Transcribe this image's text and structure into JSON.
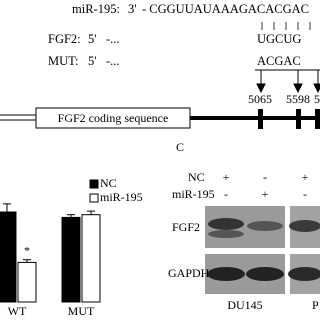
{
  "sequence": {
    "mir": {
      "label": "miR-195:",
      "end": "3'",
      "seq": "- CGGUUAUAAAGACACGAC"
    },
    "wt": {
      "label": "FGF2:",
      "end": "5'",
      "dots": "-...",
      "seq": "UGCUG"
    },
    "mut": {
      "label": "MUT:",
      "end": "5'",
      "dots": "-...",
      "seq": "ACGAC"
    },
    "positions": [
      "5065",
      "5598",
      "5"
    ]
  },
  "gene_map": {
    "box": "FGF2 coding sequence"
  },
  "panel_label": "C",
  "blot": {
    "rows": [
      "NC",
      "miR-195"
    ],
    "signs": [
      [
        "+",
        "-",
        "+"
      ],
      [
        "-",
        "+",
        "-"
      ]
    ],
    "bands": [
      "FGF2",
      "GAPDH"
    ],
    "cell_lines": [
      "DU145",
      "P"
    ]
  },
  "chart_data": {
    "type": "bar",
    "categories": [
      "WT",
      "MUT"
    ],
    "series": [
      {
        "name": "NC",
        "color": "#000000",
        "values": [
          1.0,
          0.94
        ],
        "errors": [
          0.09,
          0.03
        ]
      },
      {
        "name": "miR-195",
        "color": "#ffffff",
        "values": [
          0.44,
          0.97
        ],
        "errors": [
          0.03,
          0.04
        ]
      }
    ],
    "ylim": [
      0,
      1.2
    ],
    "annotations": [
      "*"
    ]
  }
}
